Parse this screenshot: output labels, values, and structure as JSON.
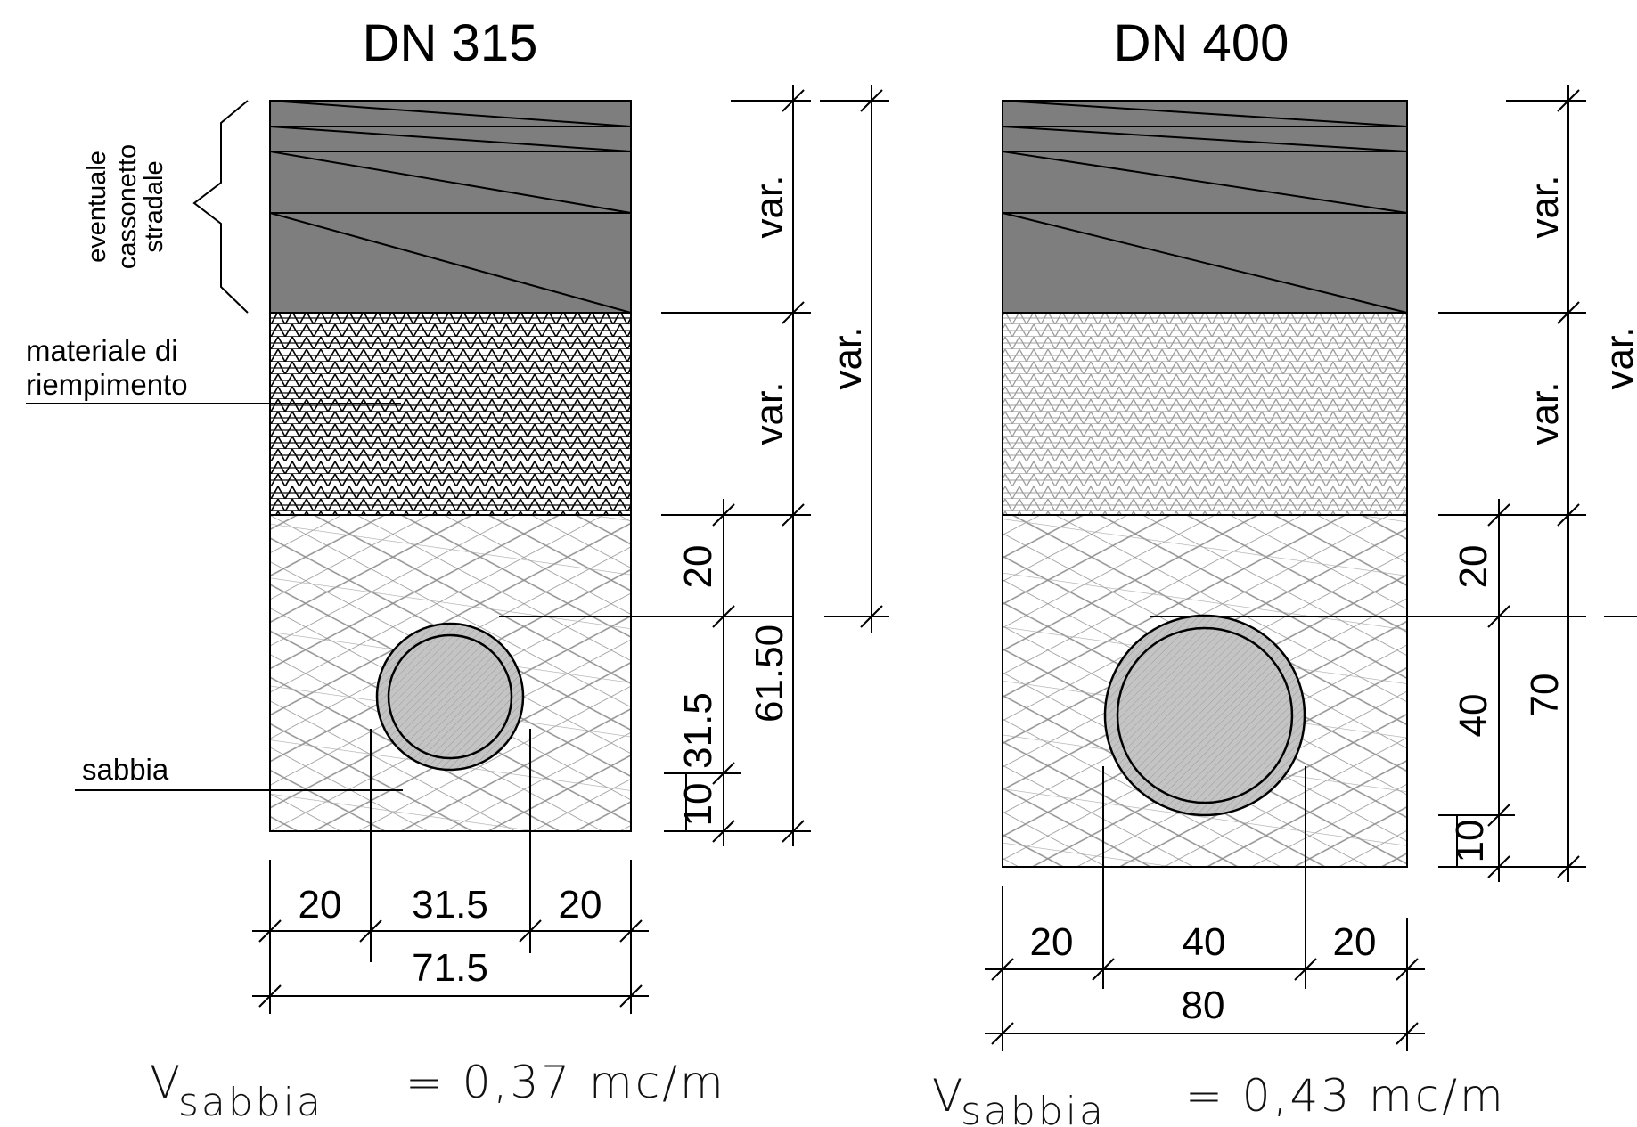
{
  "colors": {
    "road_layer": "#7e7e7e",
    "fill_hatch": "#000000",
    "fill_hatch_light": "#9c9c9c",
    "sand_hatch": "#8f8f8f",
    "pipe_ring": "#c4c4c4"
  },
  "left": {
    "title": "DN 315",
    "label_road_1": "eventuale",
    "label_road_2": "cassonetto",
    "label_road_3": "stradale",
    "label_fill_1": "materiale di",
    "label_fill_2": "riempimento",
    "label_sand": "sabbia",
    "dim_road": "var.",
    "dim_fill": "var.",
    "dim_overall": "var.",
    "dim_cover": "20",
    "dim_depth": "61.50",
    "dim_pipe": "31.5",
    "dim_bed": "10",
    "width_left": "20",
    "width_pipe": "31.5",
    "width_right": "20",
    "width_total": "71.5",
    "formula_v": "V",
    "formula_sub": "sabbia",
    "formula_value": "= 0,37 mc/m"
  },
  "right": {
    "title": "DN 400",
    "dim_road": "var.",
    "dim_fill": "var.",
    "dim_overall": "var.",
    "dim_cover": "20",
    "dim_pipe": "40",
    "dim_depth": "70",
    "dim_bed": "10",
    "width_left": "20",
    "width_pipe": "40",
    "width_right": "20",
    "width_total": "80",
    "formula_v": "V",
    "formula_sub": "sabbia",
    "formula_value": "= 0,43 mc/m"
  }
}
